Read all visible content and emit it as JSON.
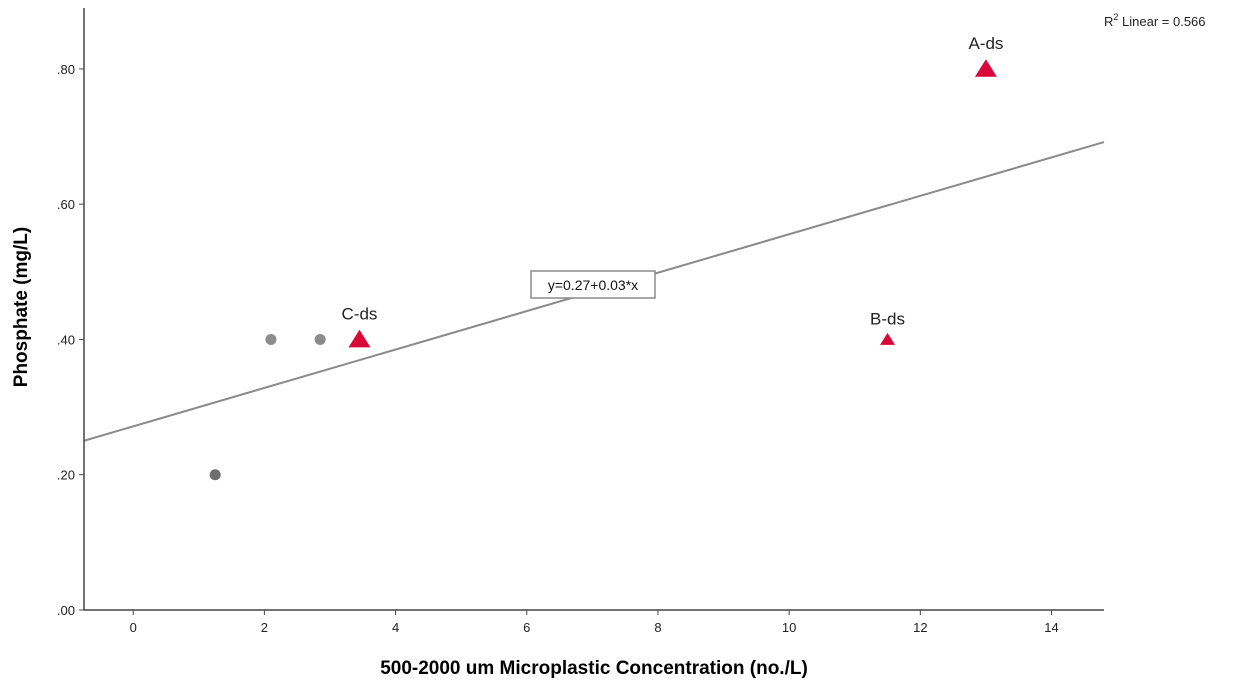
{
  "chart_data": {
    "type": "scatter",
    "xlabel": "500-2000 um Microplastic Concentration (no./L)",
    "ylabel": "Phosphate (mg/L)",
    "x_ticks": [
      "0",
      "2",
      "4",
      "6",
      "8",
      "10",
      "12",
      "14"
    ],
    "y_ticks": [
      ".00",
      ".20",
      ".40",
      ".60",
      ".80"
    ],
    "xlim": [
      -0.75,
      14.8
    ],
    "ylim": [
      0,
      0.89
    ],
    "grid": false,
    "points": [
      {
        "x": 1.25,
        "y": 0.2,
        "marker": "circle",
        "color": "#6e6e6e",
        "label": ""
      },
      {
        "x": 2.1,
        "y": 0.4,
        "marker": "circle",
        "color": "#8c8c8c",
        "label": ""
      },
      {
        "x": 2.85,
        "y": 0.4,
        "marker": "circle",
        "color": "#8c8c8c",
        "label": ""
      },
      {
        "x": 3.45,
        "y": 0.4,
        "marker": "triangle",
        "size": "large",
        "color": "#d9083a",
        "label": "C-ds"
      },
      {
        "x": 11.5,
        "y": 0.4,
        "marker": "triangle",
        "size": "small",
        "color": "#d9083a",
        "label": "B-ds"
      },
      {
        "x": 13.0,
        "y": 0.8,
        "marker": "triangle",
        "size": "large",
        "color": "#d9083a",
        "label": "A-ds"
      }
    ],
    "fit_line": {
      "intercept": 0.2715,
      "slope": 0.0284,
      "color": "#8a8a8a"
    },
    "equation_label": "y=0.27+0.03*x",
    "r2_label": {
      "prefix": "R",
      "sup": "2",
      "text": " Linear = 0.566"
    }
  }
}
